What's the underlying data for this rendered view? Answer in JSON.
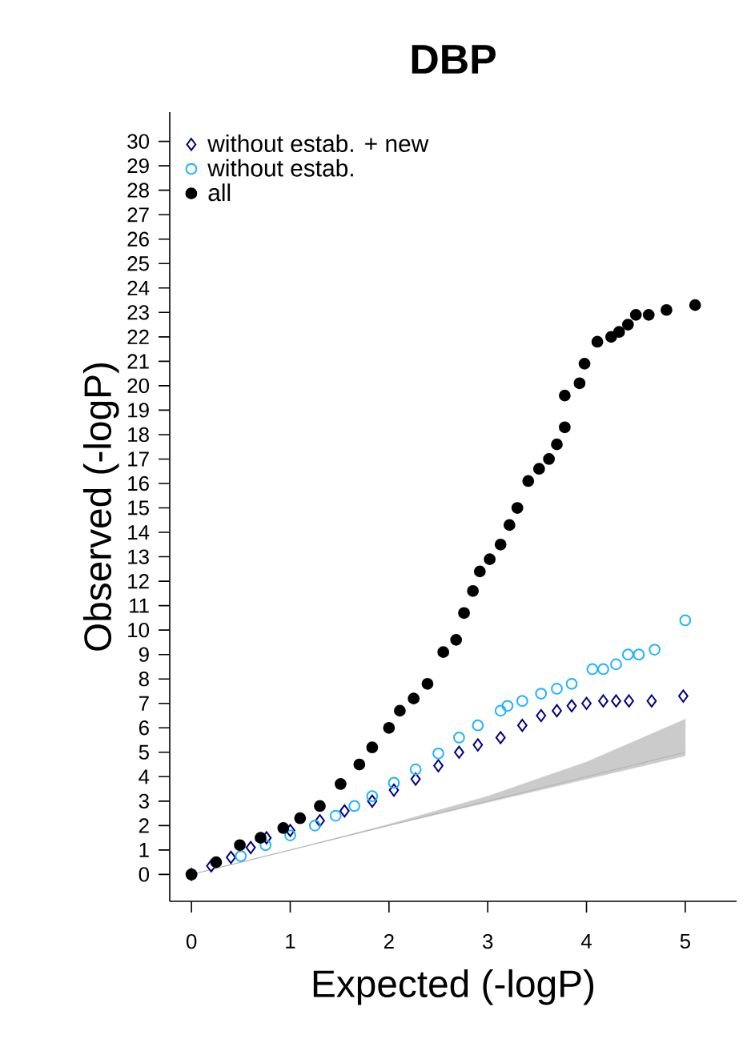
{
  "chart_data": {
    "type": "scatter",
    "title": "DBP",
    "xlabel": "Expected (-logP)",
    "ylabel": "Observed (-logP)",
    "xlim": [
      -0.22,
      5.52
    ],
    "xticks": [
      0,
      1,
      2,
      3,
      4,
      5
    ],
    "ylim": [
      -1.1,
      31.2
    ],
    "yticks": [
      0,
      1,
      2,
      3,
      4,
      5,
      6,
      7,
      8,
      9,
      10,
      11,
      12,
      13,
      14,
      15,
      16,
      17,
      18,
      19,
      20,
      21,
      22,
      23,
      24,
      25,
      26,
      27,
      28,
      29,
      30
    ],
    "grid": false,
    "legend": "top left",
    "series": [
      {
        "type": "line",
        "color": "#a8a8a8",
        "x": [
          0,
          1,
          2,
          3,
          4,
          5
        ],
        "values": [
          0,
          1,
          2,
          3,
          4,
          5
        ],
        "lower": [
          0,
          1,
          2,
          2.95,
          3.9,
          4.85
        ],
        "upper": [
          0,
          1,
          2.05,
          3.2,
          4.6,
          6.35
        ]
      },
      {
        "name": "without estab. + new",
        "color": "#000080",
        "marker": "diamond",
        "x": [
          0,
          0.2,
          0.4,
          0.6,
          0.76,
          1.0,
          1.3,
          1.55,
          1.83,
          2.05,
          2.27,
          2.5,
          2.71,
          2.9,
          3.13,
          3.35,
          3.54,
          3.7,
          3.85,
          4.0,
          4.17,
          4.3,
          4.43,
          4.66,
          4.98
        ],
        "values": [
          0,
          0.35,
          0.7,
          1.1,
          1.5,
          1.8,
          2.2,
          2.6,
          3.0,
          3.45,
          3.9,
          4.45,
          5.0,
          5.3,
          5.6,
          6.1,
          6.5,
          6.7,
          6.9,
          7.0,
          7.1,
          7.1,
          7.1,
          7.1,
          7.3
        ]
      },
      {
        "name": "without estab.",
        "color": "#1eb4ff",
        "marker": "circle",
        "x": [
          0,
          0.25,
          0.5,
          0.75,
          1.0,
          1.25,
          1.46,
          1.65,
          1.83,
          2.05,
          2.27,
          2.5,
          2.71,
          2.9,
          3.13,
          3.2,
          3.35,
          3.54,
          3.7,
          3.85,
          4.06,
          4.17,
          4.3,
          4.42,
          4.53,
          4.69,
          5.0
        ],
        "values": [
          0,
          null,
          0.75,
          1.2,
          1.6,
          2.0,
          2.4,
          2.8,
          3.2,
          3.75,
          4.3,
          4.95,
          5.6,
          6.1,
          6.7,
          6.9,
          7.1,
          7.4,
          7.6,
          7.8,
          8.4,
          8.4,
          8.6,
          9.0,
          9.0,
          9.2,
          10.4
        ]
      },
      {
        "name": "all",
        "color": "#000000",
        "marker": "circle",
        "x": [
          0,
          0.25,
          0.49,
          0.7,
          0.93,
          1.1,
          1.3,
          1.51,
          1.7,
          1.83,
          2.0,
          2.11,
          2.25,
          2.39,
          2.55,
          2.68,
          2.76,
          2.85,
          2.92,
          3.02,
          3.13,
          3.22,
          3.3,
          3.41,
          3.52,
          3.62,
          3.7,
          3.78,
          3.78,
          3.93,
          3.98,
          4.11,
          4.25,
          4.33,
          4.42,
          4.5,
          4.63,
          4.81,
          5.1
        ],
        "values": [
          0,
          0.5,
          1.2,
          1.5,
          1.9,
          2.3,
          2.8,
          3.7,
          4.5,
          5.2,
          6.0,
          6.7,
          7.2,
          7.8,
          9.1,
          9.6,
          10.7,
          11.6,
          12.4,
          12.9,
          13.5,
          14.3,
          15.0,
          16.1,
          16.6,
          17.0,
          17.6,
          18.3,
          19.6,
          20.1,
          20.9,
          21.8,
          22.0,
          22.2,
          22.5,
          22.9,
          22.9,
          23.1,
          23.3
        ]
      }
    ]
  }
}
